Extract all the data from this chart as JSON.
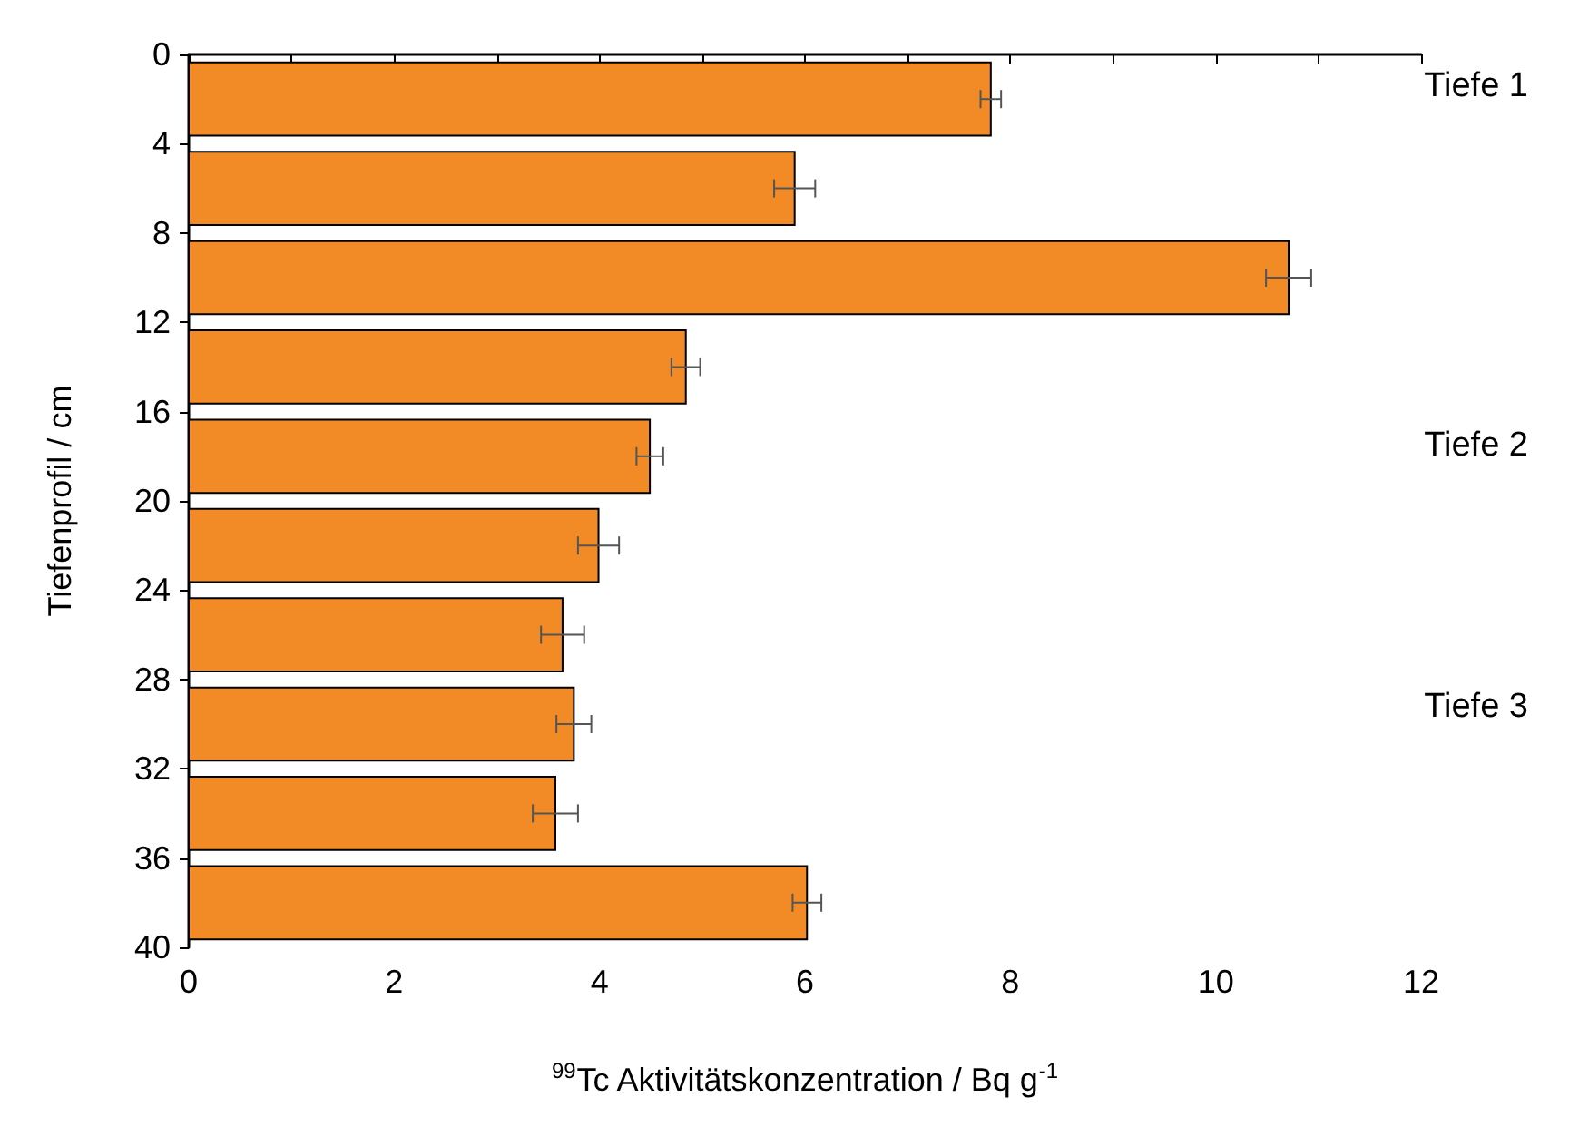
{
  "chart_data": {
    "type": "bar",
    "orientation": "horizontal",
    "xlabel": "$^{99}$Tc Aktivitätskonzentration / Bq g$^{-1}$",
    "ylabel": "Tiefenprofil / cm",
    "x": [
      2,
      6,
      10,
      14,
      18,
      22,
      26,
      30,
      34,
      38
    ],
    "values": [
      7.81,
      5.9,
      10.71,
      4.84,
      4.49,
      3.99,
      3.64,
      3.75,
      3.57,
      6.02
    ],
    "errors": [
      0.1,
      0.2,
      0.22,
      0.14,
      0.13,
      0.2,
      0.21,
      0.17,
      0.22,
      0.14
    ],
    "color": "#f28a25",
    "xlim": [
      0,
      12
    ],
    "xticks": [
      0,
      {
        "value": 1,
        "label": null
      },
      2,
      {
        "value": 3,
        "label": null
      },
      4,
      {
        "value": 5,
        "label": null
      },
      6,
      {
        "value": 7,
        "label": null
      },
      8,
      {
        "value": 9,
        "label": null
      },
      10,
      {
        "value": 11,
        "label": null
      },
      12
    ],
    "ylim": [
      40,
      0
    ],
    "yticks": [
      0,
      4,
      8,
      12,
      16,
      20,
      24,
      28,
      32,
      36,
      40
    ],
    "annotations": [
      "Tiefe 1",
      "Tiefe 2",
      "Tiefe 3"
    ],
    "grid": false
  }
}
